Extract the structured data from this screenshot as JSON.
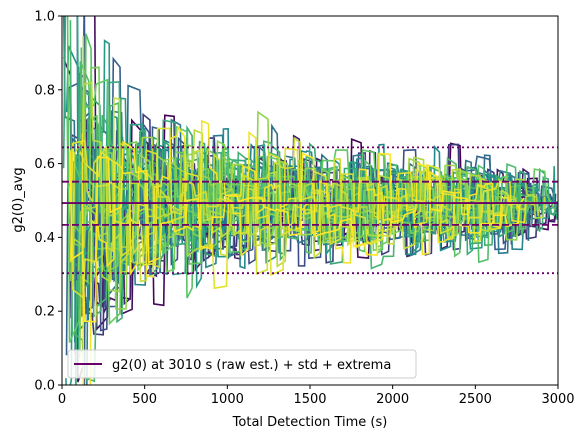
{
  "chart_data": {
    "type": "line",
    "xlabel": "Total Detection Time (s)",
    "ylabel": "g2(0)_avg",
    "xlim": [
      0,
      3000
    ],
    "ylim": [
      0,
      1.0
    ],
    "x_ticks": [
      0,
      500,
      1000,
      1500,
      2000,
      2500,
      3000
    ],
    "y_ticks": [
      0.0,
      0.2,
      0.4,
      0.6,
      0.8,
      1.0
    ],
    "x_tick_labels": [
      "0",
      "500",
      "1000",
      "1500",
      "2000",
      "2500",
      "3000"
    ],
    "y_tick_labels": [
      "0.0",
      "0.2",
      "0.4",
      "0.6",
      "0.8",
      "1.0"
    ],
    "grid": false,
    "legend_position": "lower-left",
    "legend": [
      {
        "label": "g2(0) at 3010 s (raw est.) + std + extrema",
        "color": "#6a006a"
      }
    ],
    "reference_lines": [
      {
        "kind": "solid",
        "y": 0.493,
        "color": "#6a006a"
      },
      {
        "kind": "dashed",
        "y": 0.551,
        "color": "#6a006a"
      },
      {
        "kind": "dashed",
        "y": 0.434,
        "color": "#6a006a"
      },
      {
        "kind": "dotted",
        "y": 0.644,
        "color": "#6a006a"
      },
      {
        "kind": "dotted",
        "y": 0.303,
        "color": "#6a006a"
      }
    ],
    "series_count": 48,
    "converged_value": 0.493,
    "colormap": [
      "#440154",
      "#3b528b",
      "#21918c",
      "#5ec962",
      "#fde725"
    ]
  }
}
